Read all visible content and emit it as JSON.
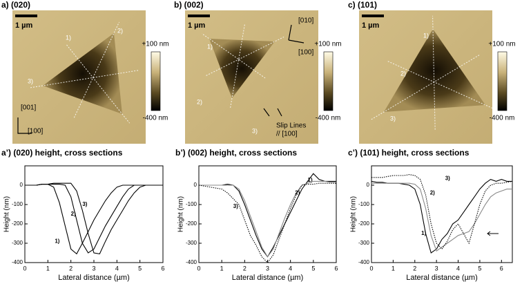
{
  "images": [
    {
      "title": "a) (020)",
      "scale_bar": "1 µm",
      "colorbar_max": "+100 nm",
      "colorbar_min": "-400 nm",
      "annotations": [
        "1)",
        "2)",
        "3)",
        "[001]",
        "[100]"
      ]
    },
    {
      "title": "b) (002)",
      "scale_bar": "1 µm",
      "colorbar_max": "+100 nm",
      "colorbar_min": "-400 nm",
      "annotations": [
        "1)",
        "2)",
        "3)",
        "[010]",
        "[100]",
        "Slip Lines",
        "// [100]"
      ]
    },
    {
      "title": "c) (101)",
      "scale_bar": "1 µm",
      "colorbar_max": "+100 nm",
      "colorbar_min": "-400 nm",
      "annotations": [
        "1)",
        "2)",
        "3)"
      ]
    }
  ],
  "chart_data": [
    {
      "type": "line",
      "title": "a’) (020) height, cross sections",
      "x_label": "Lateral distance (µm)",
      "y_label": "Height (nm)",
      "x": [
        0,
        0.25,
        0.5,
        0.75,
        1,
        1.25,
        1.5,
        1.75,
        2,
        2.25,
        2.5,
        2.75,
        3,
        3.25,
        3.5,
        3.75,
        4,
        4.25,
        4.5,
        4.75,
        5,
        5.25,
        5.5,
        5.75,
        6
      ],
      "xlim": [
        0,
        6
      ],
      "xticks": [
        0,
        1,
        2,
        3,
        4,
        5,
        6
      ],
      "ylim": [
        -400,
        100
      ],
      "yticks": [
        0,
        -100,
        -200,
        -300,
        -400
      ],
      "series": [
        {
          "name": "1)",
          "color": "#000000",
          "dash": "solid",
          "values": [
            0,
            0,
            0,
            5,
            5,
            -10,
            -90,
            -210,
            -330,
            -355,
            -300,
            -240,
            -180,
            -130,
            -80,
            -40,
            -10,
            0,
            0,
            0,
            0,
            0,
            0,
            0,
            0
          ]
        },
        {
          "name": "2)",
          "color": "#000000",
          "dash": "solid",
          "values": [
            0,
            0,
            0,
            5,
            5,
            5,
            5,
            0,
            -60,
            -180,
            -300,
            -350,
            -330,
            -270,
            -210,
            -160,
            -110,
            -60,
            -20,
            0,
            0,
            0,
            0,
            0,
            0
          ]
        },
        {
          "name": "3)",
          "color": "#000000",
          "dash": "solid",
          "values": [
            0,
            0,
            0,
            5,
            5,
            10,
            10,
            10,
            10,
            -30,
            -130,
            -250,
            -350,
            -355,
            -290,
            -230,
            -180,
            -130,
            -80,
            -40,
            -10,
            0,
            0,
            0,
            0
          ]
        }
      ]
    },
    {
      "type": "line",
      "title": "b’) (002) height, cross sections",
      "x_label": "Lateral distance (µm)",
      "y_label": "Height (nm)",
      "x": [
        0,
        0.25,
        0.5,
        0.75,
        1,
        1.25,
        1.5,
        1.75,
        2,
        2.25,
        2.5,
        2.75,
        3,
        3.25,
        3.5,
        3.75,
        4,
        4.25,
        4.5,
        4.75,
        5,
        5.25,
        5.5,
        5.75,
        6
      ],
      "xlim": [
        0,
        6
      ],
      "xticks": [
        0,
        1,
        2,
        3,
        4,
        5,
        6
      ],
      "ylim": [
        -400,
        100
      ],
      "yticks": [
        0,
        -100,
        -200,
        -300,
        -400
      ],
      "series": [
        {
          "name": "1)",
          "color": "#000000",
          "dash": "solid",
          "values": [
            0,
            0,
            0,
            0,
            0,
            5,
            0,
            -30,
            -100,
            -180,
            -260,
            -330,
            -370,
            -320,
            -260,
            -200,
            -140,
            -80,
            -20,
            20,
            60,
            30,
            20,
            20,
            20
          ]
        },
        {
          "name": "2)",
          "color": "#888888",
          "dash": "solid",
          "values": [
            0,
            0,
            0,
            0,
            0,
            0,
            0,
            -20,
            -80,
            -160,
            -240,
            -320,
            -370,
            -330,
            -250,
            -170,
            -100,
            -40,
            0,
            10,
            20,
            20,
            20,
            15,
            15
          ]
        },
        {
          "name": "3)",
          "color": "#000000",
          "dash": "dotted",
          "values": [
            0,
            -5,
            -10,
            -15,
            -20,
            -40,
            -70,
            -100,
            -180,
            -260,
            -310,
            -370,
            -400,
            -360,
            -280,
            -200,
            -120,
            -50,
            0,
            5,
            5,
            10,
            10,
            10,
            10
          ]
        }
      ]
    },
    {
      "type": "line",
      "title": "c’) (101) height, cross sections",
      "x_label": "Lateral distance (µm)",
      "y_label": "Height (nm)",
      "x": [
        0,
        0.25,
        0.5,
        0.75,
        1,
        1.25,
        1.5,
        1.75,
        2,
        2.25,
        2.5,
        2.75,
        3,
        3.25,
        3.5,
        3.75,
        4,
        4.25,
        4.5,
        4.75,
        5,
        5.25,
        5.5,
        5.75,
        6,
        6.25,
        6.5
      ],
      "xlim": [
        0,
        6.5
      ],
      "xticks": [
        0,
        1,
        2,
        3,
        4,
        5,
        6
      ],
      "ylim": [
        -400,
        100
      ],
      "yticks": [
        0,
        -100,
        -200,
        -300,
        -400
      ],
      "series": [
        {
          "name": "1)",
          "color": "#000000",
          "dash": "solid",
          "values": [
            20,
            15,
            15,
            10,
            10,
            10,
            5,
            0,
            -20,
            -100,
            -250,
            -350,
            -330,
            -280,
            -250,
            -200,
            -180,
            -140,
            -100,
            -60,
            -20,
            10,
            30,
            20,
            30,
            20,
            20
          ]
        },
        {
          "name": "2)",
          "color": "#888888",
          "dash": "solid",
          "values": [
            10,
            10,
            10,
            10,
            10,
            10,
            10,
            10,
            5,
            -20,
            -120,
            -260,
            -340,
            -320,
            -300,
            -280,
            -260,
            -250,
            -240,
            -200,
            -150,
            -100,
            -60,
            -40,
            -30,
            -20,
            -20
          ]
        },
        {
          "name": "3)",
          "color": "#000000",
          "dash": "dotted",
          "values": [
            40,
            40,
            40,
            45,
            50,
            50,
            50,
            55,
            50,
            30,
            -50,
            -200,
            -300,
            -330,
            -290,
            -230,
            -200,
            -250,
            -300,
            -200,
            -100,
            -30,
            0,
            10,
            10,
            15,
            20
          ]
        }
      ]
    }
  ]
}
